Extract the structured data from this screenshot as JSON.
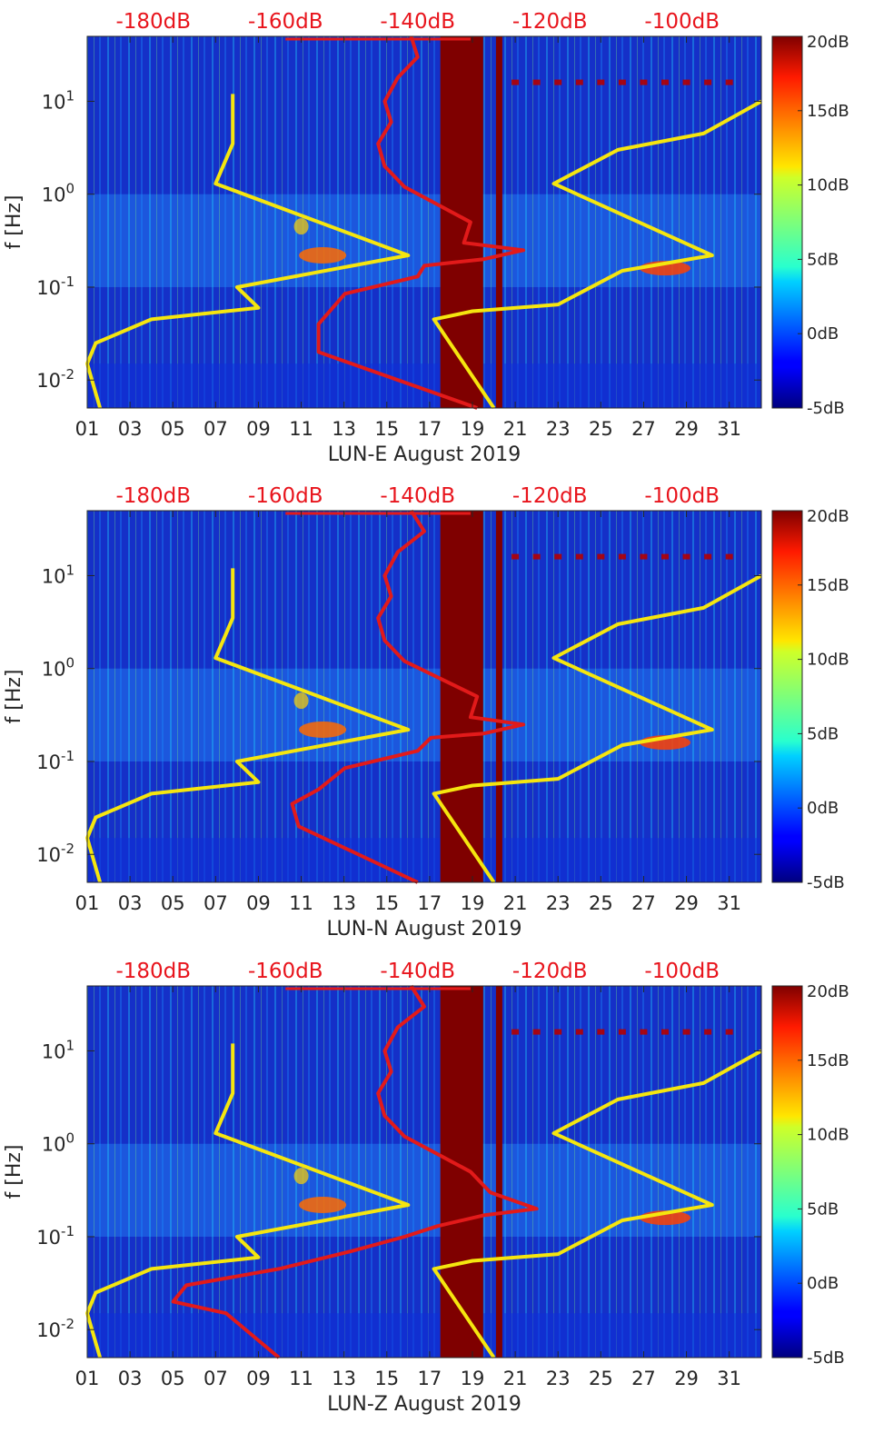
{
  "chart_data": [
    {
      "type": "heatmap",
      "panel": "LUN-E",
      "xlabel": "LUN-E August 2019",
      "ylabel": "f [Hz]",
      "x_ticks": [
        "01",
        "03",
        "05",
        "07",
        "09",
        "11",
        "13",
        "15",
        "17",
        "19",
        "21",
        "23",
        "25",
        "27",
        "29",
        "31"
      ],
      "x_tick_values": [
        1,
        3,
        5,
        7,
        9,
        11,
        13,
        15,
        17,
        19,
        21,
        23,
        25,
        27,
        29,
        31
      ],
      "xlim": [
        1,
        32.5
      ],
      "y_scale": "log",
      "ylim": [
        0.005,
        50
      ],
      "y_ticks": [
        {
          "base": "10",
          "exp": "-2",
          "value": 0.01
        },
        {
          "base": "10",
          "exp": "-1",
          "value": 0.1
        },
        {
          "base": "10",
          "exp": "0",
          "value": 1
        },
        {
          "base": "10",
          "exp": "1",
          "value": 10
        }
      ],
      "top_axis_ticks": [
        "-180dB",
        "-160dB",
        "-140dB",
        "-120dB",
        "-100dB"
      ],
      "top_axis_values": [
        -180,
        -160,
        -140,
        -120,
        -100
      ],
      "top_axis_lim": [
        -190,
        -88
      ],
      "colorbar": {
        "ticks": [
          "20dB",
          "15dB",
          "10dB",
          "5dB",
          "0dB",
          "-5dB"
        ],
        "values": [
          20,
          15,
          10,
          5,
          0,
          -5
        ],
        "range": [
          -5,
          20
        ],
        "colormap": "jet"
      },
      "data_gap_days": [
        17.5,
        19.5
      ],
      "series": [
        {
          "color": "#f5e60f",
          "points": [
            [
              1.6,
              0.005
            ],
            [
              1.0,
              0.015
            ],
            [
              1.4,
              0.025
            ],
            [
              4.0,
              0.045
            ],
            [
              9.0,
              0.06
            ],
            [
              8.0,
              0.1
            ],
            [
              16.0,
              0.22
            ],
            [
              7.0,
              1.3
            ],
            [
              7.8,
              3.5
            ],
            [
              7.8,
              12
            ]
          ]
        },
        {
          "color": "#f5e60f",
          "points": [
            [
              20,
              0.005
            ],
            [
              17.2,
              0.045
            ],
            [
              19.0,
              0.055
            ],
            [
              23.0,
              0.065
            ],
            [
              26.0,
              0.15
            ],
            [
              30.2,
              0.22
            ],
            [
              22.8,
              1.3
            ],
            [
              25.8,
              3.0
            ],
            [
              29.8,
              4.5
            ],
            [
              32.5,
              10
            ]
          ]
        },
        {
          "color": "#e21a1a",
          "points": [
            [
              -131,
              0.005
            ],
            [
              -155,
              0.02
            ],
            [
              -155,
              0.04
            ],
            [
              -151,
              0.085
            ],
            [
              -140,
              0.13
            ],
            [
              -139,
              0.17
            ],
            [
              -130,
              0.2
            ],
            [
              -124,
              0.25
            ],
            [
              -133,
              0.3
            ],
            [
              -132,
              0.5
            ],
            [
              -142,
              1.2
            ],
            [
              -145,
              2
            ],
            [
              -146,
              3.5
            ],
            [
              -144,
              6
            ],
            [
              -145,
              10
            ],
            [
              -143,
              18
            ],
            [
              -140,
              30
            ],
            [
              -141,
              50
            ]
          ]
        }
      ]
    },
    {
      "type": "heatmap",
      "panel": "LUN-N",
      "xlabel": "LUN-N August 2019",
      "ylabel": "f [Hz]",
      "x_ticks": [
        "01",
        "03",
        "05",
        "07",
        "09",
        "11",
        "13",
        "15",
        "17",
        "19",
        "21",
        "23",
        "25",
        "27",
        "29",
        "31"
      ],
      "x_tick_values": [
        1,
        3,
        5,
        7,
        9,
        11,
        13,
        15,
        17,
        19,
        21,
        23,
        25,
        27,
        29,
        31
      ],
      "xlim": [
        1,
        32.5
      ],
      "y_scale": "log",
      "ylim": [
        0.005,
        50
      ],
      "y_ticks": [
        {
          "base": "10",
          "exp": "-2",
          "value": 0.01
        },
        {
          "base": "10",
          "exp": "-1",
          "value": 0.1
        },
        {
          "base": "10",
          "exp": "0",
          "value": 1
        },
        {
          "base": "10",
          "exp": "1",
          "value": 10
        }
      ],
      "top_axis_ticks": [
        "-180dB",
        "-160dB",
        "-140dB",
        "-120dB",
        "-100dB"
      ],
      "top_axis_values": [
        -180,
        -160,
        -140,
        -120,
        -100
      ],
      "top_axis_lim": [
        -190,
        -88
      ],
      "colorbar": {
        "ticks": [
          "20dB",
          "15dB",
          "10dB",
          "5dB",
          "0dB",
          "-5dB"
        ],
        "values": [
          20,
          15,
          10,
          5,
          0,
          -5
        ],
        "range": [
          -5,
          20
        ],
        "colormap": "jet"
      },
      "data_gap_days": [
        17.5,
        19.5
      ],
      "series": [
        {
          "color": "#f5e60f",
          "points": [
            [
              1.6,
              0.005
            ],
            [
              1.0,
              0.015
            ],
            [
              1.4,
              0.025
            ],
            [
              4.0,
              0.045
            ],
            [
              9.0,
              0.06
            ],
            [
              8.0,
              0.1
            ],
            [
              16.0,
              0.22
            ],
            [
              7.0,
              1.3
            ],
            [
              7.8,
              3.5
            ],
            [
              7.8,
              12
            ]
          ]
        },
        {
          "color": "#f5e60f",
          "points": [
            [
              20,
              0.005
            ],
            [
              17.2,
              0.045
            ],
            [
              19.0,
              0.055
            ],
            [
              23.0,
              0.065
            ],
            [
              26.0,
              0.15
            ],
            [
              30.2,
              0.22
            ],
            [
              22.8,
              1.3
            ],
            [
              25.8,
              3.0
            ],
            [
              29.8,
              4.5
            ],
            [
              32.5,
              10
            ]
          ]
        },
        {
          "color": "#e21a1a",
          "points": [
            [
              -140,
              0.005
            ],
            [
              -158,
              0.02
            ],
            [
              -159,
              0.035
            ],
            [
              -155,
              0.05
            ],
            [
              -151,
              0.085
            ],
            [
              -140,
              0.13
            ],
            [
              -138,
              0.18
            ],
            [
              -130,
              0.2
            ],
            [
              -124,
              0.25
            ],
            [
              -132,
              0.3
            ],
            [
              -131,
              0.5
            ],
            [
              -142,
              1.2
            ],
            [
              -145,
              2
            ],
            [
              -146,
              3.5
            ],
            [
              -144,
              6
            ],
            [
              -145,
              10
            ],
            [
              -143,
              18
            ],
            [
              -139,
              30
            ],
            [
              -141,
              50
            ]
          ]
        }
      ]
    },
    {
      "type": "heatmap",
      "panel": "LUN-Z",
      "xlabel": "LUN-Z August 2019",
      "ylabel": "f [Hz]",
      "x_ticks": [
        "01",
        "03",
        "05",
        "07",
        "09",
        "11",
        "13",
        "15",
        "17",
        "19",
        "21",
        "23",
        "25",
        "27",
        "29",
        "31"
      ],
      "x_tick_values": [
        1,
        3,
        5,
        7,
        9,
        11,
        13,
        15,
        17,
        19,
        21,
        23,
        25,
        27,
        29,
        31
      ],
      "xlim": [
        1,
        32.5
      ],
      "y_scale": "log",
      "ylim": [
        0.005,
        50
      ],
      "y_ticks": [
        {
          "base": "10",
          "exp": "-2",
          "value": 0.01
        },
        {
          "base": "10",
          "exp": "-1",
          "value": 0.1
        },
        {
          "base": "10",
          "exp": "0",
          "value": 1
        },
        {
          "base": "10",
          "exp": "1",
          "value": 10
        }
      ],
      "top_axis_ticks": [
        "-180dB",
        "-160dB",
        "-140dB",
        "-120dB",
        "-100dB"
      ],
      "top_axis_values": [
        -180,
        -160,
        -140,
        -120,
        -100
      ],
      "top_axis_lim": [
        -190,
        -88
      ],
      "colorbar": {
        "ticks": [
          "20dB",
          "15dB",
          "10dB",
          "5dB",
          "0dB",
          "-5dB"
        ],
        "values": [
          20,
          15,
          10,
          5,
          0,
          -5
        ],
        "range": [
          -5,
          20
        ],
        "colormap": "jet"
      },
      "data_gap_days": [
        17.5,
        19.5
      ],
      "series": [
        {
          "color": "#f5e60f",
          "points": [
            [
              1.6,
              0.005
            ],
            [
              1.0,
              0.015
            ],
            [
              1.4,
              0.025
            ],
            [
              4.0,
              0.045
            ],
            [
              9.0,
              0.06
            ],
            [
              8.0,
              0.1
            ],
            [
              16.0,
              0.22
            ],
            [
              7.0,
              1.3
            ],
            [
              7.8,
              3.5
            ],
            [
              7.8,
              12
            ]
          ]
        },
        {
          "color": "#f5e60f",
          "points": [
            [
              20,
              0.005
            ],
            [
              17.2,
              0.045
            ],
            [
              19.0,
              0.055
            ],
            [
              23.0,
              0.065
            ],
            [
              26.0,
              0.15
            ],
            [
              30.2,
              0.22
            ],
            [
              22.8,
              1.3
            ],
            [
              25.8,
              3.0
            ],
            [
              29.8,
              4.5
            ],
            [
              32.5,
              10
            ]
          ]
        },
        {
          "color": "#e21a1a",
          "points": [
            [
              -161,
              0.005
            ],
            [
              -169,
              0.015
            ],
            [
              -177,
              0.02
            ],
            [
              -175,
              0.03
            ],
            [
              -161,
              0.045
            ],
            [
              -150,
              0.07
            ],
            [
              -142,
              0.1
            ],
            [
              -137,
              0.13
            ],
            [
              -130,
              0.17
            ],
            [
              -122,
              0.2
            ],
            [
              -129,
              0.3
            ],
            [
              -132,
              0.5
            ],
            [
              -142,
              1.2
            ],
            [
              -145,
              2
            ],
            [
              -146,
              3.5
            ],
            [
              -144,
              6
            ],
            [
              -145,
              10
            ],
            [
              -143,
              18
            ],
            [
              -139,
              30
            ],
            [
              -141,
              50
            ]
          ]
        }
      ]
    }
  ]
}
